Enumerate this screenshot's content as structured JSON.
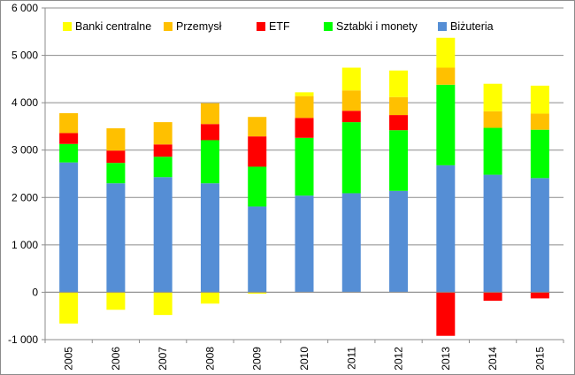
{
  "chart_data": {
    "type": "bar",
    "stacked": true,
    "categories": [
      "2005",
      "2006",
      "2007",
      "2008",
      "2009",
      "2010",
      "2011",
      "2012",
      "2013",
      "2014",
      "2015"
    ],
    "ylim": [
      -1000,
      6000
    ],
    "y_ticks": [
      -1000,
      0,
      1000,
      2000,
      3000,
      4000,
      5000,
      6000
    ],
    "y_tick_labels": [
      "-1 000",
      "0",
      "1 000",
      "2 000",
      "3 000",
      "4 000",
      "5 000",
      "6 000"
    ],
    "grid": true,
    "legend_position": "top",
    "series": [
      {
        "name": "Biżuteria",
        "color": "#558ED5",
        "values": [
          2740,
          2300,
          2430,
          2300,
          1810,
          2040,
          2090,
          2140,
          2680,
          2480,
          2410
        ]
      },
      {
        "name": "Sztabki i monety",
        "color": "#00FF00",
        "values": [
          390,
          430,
          430,
          910,
          840,
          1220,
          1500,
          1280,
          1700,
          990,
          1020
        ]
      },
      {
        "name": "ETF",
        "color": "#FF0000",
        "values": [
          230,
          260,
          260,
          340,
          640,
          420,
          240,
          320,
          -920,
          -180,
          -130
        ]
      },
      {
        "name": "Przemysł",
        "color": "#FFC000",
        "values": [
          420,
          470,
          470,
          440,
          410,
          460,
          430,
          380,
          360,
          350,
          340
        ]
      },
      {
        "name": "Banki centralne",
        "color": "#FFFF00",
        "values": [
          -660,
          -370,
          -480,
          -240,
          -30,
          80,
          480,
          560,
          630,
          580,
          590
        ]
      }
    ]
  }
}
